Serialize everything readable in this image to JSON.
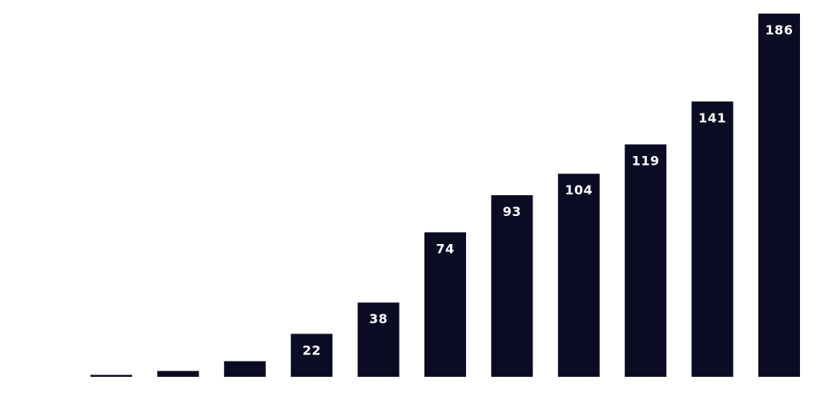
{
  "chart_data": {
    "type": "bar",
    "values": [
      1,
      3,
      8,
      22,
      38,
      74,
      93,
      104,
      119,
      141,
      186
    ],
    "data_labels": [
      "",
      "",
      "",
      "22",
      "38",
      "74",
      "93",
      "104",
      "119",
      "141",
      "186"
    ],
    "ylim": [
      0,
      186
    ],
    "grid": false,
    "legend": "none",
    "title": "",
    "xlabel": "",
    "ylabel": ""
  },
  "colors": {
    "bar": "#0c0b24",
    "label": "#ffffff",
    "background": "#ffffff"
  }
}
